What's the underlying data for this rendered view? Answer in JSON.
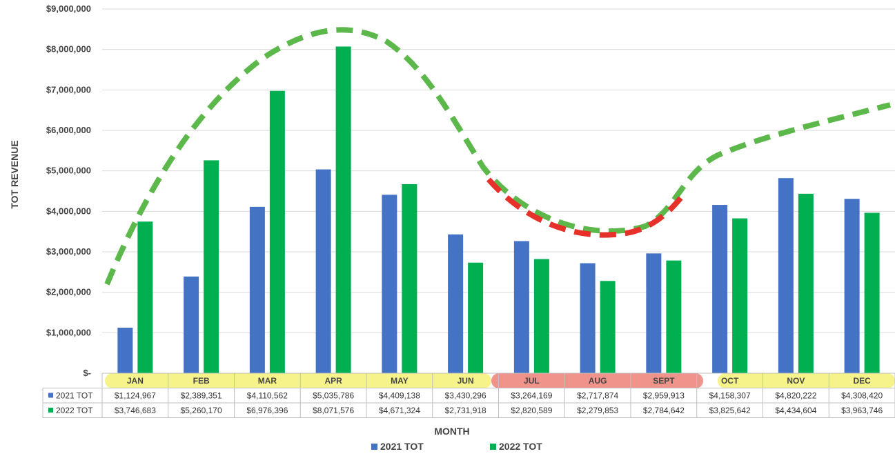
{
  "chart_data": {
    "type": "bar",
    "ylabel": "TOT REVENUE",
    "xlabel": "MONTH",
    "ylim": [
      0,
      9000000
    ],
    "y_ticks": [
      {
        "value": 0,
        "label": "$-"
      },
      {
        "value": 1000000,
        "label": "$1,000,000"
      },
      {
        "value": 2000000,
        "label": "$2,000,000"
      },
      {
        "value": 3000000,
        "label": "$3,000,000"
      },
      {
        "value": 4000000,
        "label": "$4,000,000"
      },
      {
        "value": 5000000,
        "label": "$5,000,000"
      },
      {
        "value": 6000000,
        "label": "$6,000,000"
      },
      {
        "value": 7000000,
        "label": "$7,000,000"
      },
      {
        "value": 8000000,
        "label": "$8,000,000"
      },
      {
        "value": 9000000,
        "label": "$9,000,000"
      }
    ],
    "categories": [
      "JAN",
      "FEB",
      "MAR",
      "APR",
      "MAY",
      "JUN",
      "JUL",
      "AUG",
      "SEPT",
      "OCT",
      "NOV",
      "DEC"
    ],
    "series": [
      {
        "name": "2021 TOT",
        "color": "#4472c4",
        "values": [
          1124967,
          2389351,
          4110562,
          5035786,
          4409138,
          3430296,
          3264169,
          2717874,
          2959913,
          4158307,
          4820222,
          4308420
        ],
        "labels": [
          "$1,124,967",
          "$2,389,351",
          "$4,110,562",
          "$5,035,786",
          "$4,409,138",
          "$3,430,296",
          "$3,264,169",
          "$2,717,874",
          "$2,959,913",
          "$4,158,307",
          "$4,820,222",
          "$4,308,420"
        ]
      },
      {
        "name": "2022 TOT",
        "color": "#00b050",
        "values": [
          3746683,
          5260170,
          6976396,
          8071576,
          4671324,
          2731918,
          2820589,
          2279853,
          2784642,
          3825642,
          4434604,
          3963746
        ],
        "labels": [
          "$3,746,683",
          "$5,260,170",
          "$6,976,396",
          "$8,071,576",
          "$4,671,324",
          "$2,731,918",
          "$2,820,589",
          "$2,279,853",
          "$2,784,642",
          "$3,825,642",
          "$4,434,604",
          "$3,963,746"
        ]
      }
    ],
    "data_table": true,
    "grid": true,
    "legend_position": "bottom",
    "annotations": {
      "trend_green_color": "#5cb84a",
      "trend_red_color": "#e8302a",
      "highlight_yellow": "#f6f38a",
      "highlight_red": "#f0938a"
    }
  }
}
